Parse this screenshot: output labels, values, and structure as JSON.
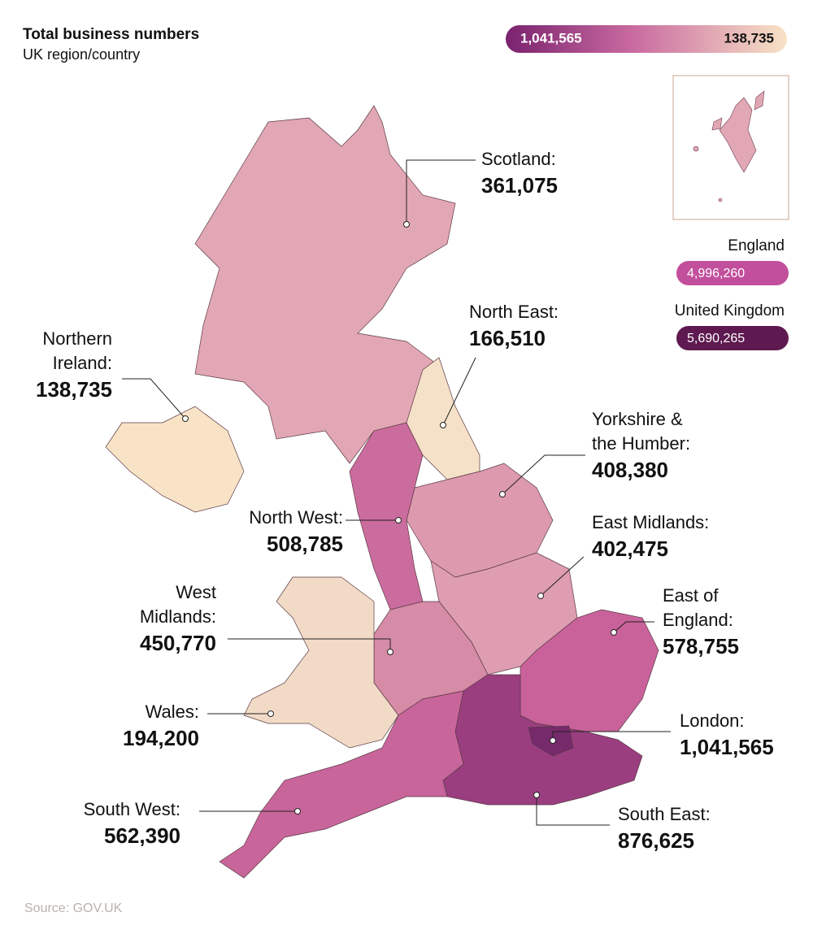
{
  "header": {
    "title": "Total business numbers",
    "subtitle": "UK region/country"
  },
  "legend": {
    "max_label": "1,041,565",
    "min_label": "138,735"
  },
  "totals": [
    {
      "name": "England",
      "value": "4,996,260",
      "color": "#c24f9c"
    },
    {
      "name": "United Kingdom",
      "value": "5,690,265",
      "color": "#5e1a50"
    }
  ],
  "regions": [
    {
      "label_lines": [
        "Scotland:"
      ],
      "value": "361,075",
      "color": "#e2a7b4"
    },
    {
      "label_lines": [
        "North East:"
      ],
      "value": "166,510",
      "color": "#f5e1c8"
    },
    {
      "label_lines": [
        "Northern",
        "Ireland:"
      ],
      "value": "138,735",
      "color": "#f8e3c6"
    },
    {
      "label_lines": [
        "Yorkshire &",
        "the Humber:"
      ],
      "value": "408,380",
      "color": "#dd9aaf"
    },
    {
      "label_lines": [
        "North West:"
      ],
      "value": "508,785",
      "color": "#cb6c9e"
    },
    {
      "label_lines": [
        "East Midlands:"
      ],
      "value": "402,475",
      "color": "#de9db1"
    },
    {
      "label_lines": [
        "West",
        "Midlands:"
      ],
      "value": "450,770",
      "color": "#d68ba6"
    },
    {
      "label_lines": [
        "East of",
        "England:"
      ],
      "value": "578,755",
      "color": "#c9629b"
    },
    {
      "label_lines": [
        "Wales:"
      ],
      "value": "194,200",
      "color": "#f1dbc6"
    },
    {
      "label_lines": [
        "South East:"
      ],
      "value": "876,625",
      "color": "#9a3e80"
    },
    {
      "label_lines": [
        "South West:"
      ],
      "value": "562,390",
      "color": "#c8659a"
    },
    {
      "label_lines": [
        "London:"
      ],
      "value": "1,041,565",
      "color": "#76296b"
    }
  ],
  "source": "Source: GOV.UK"
}
